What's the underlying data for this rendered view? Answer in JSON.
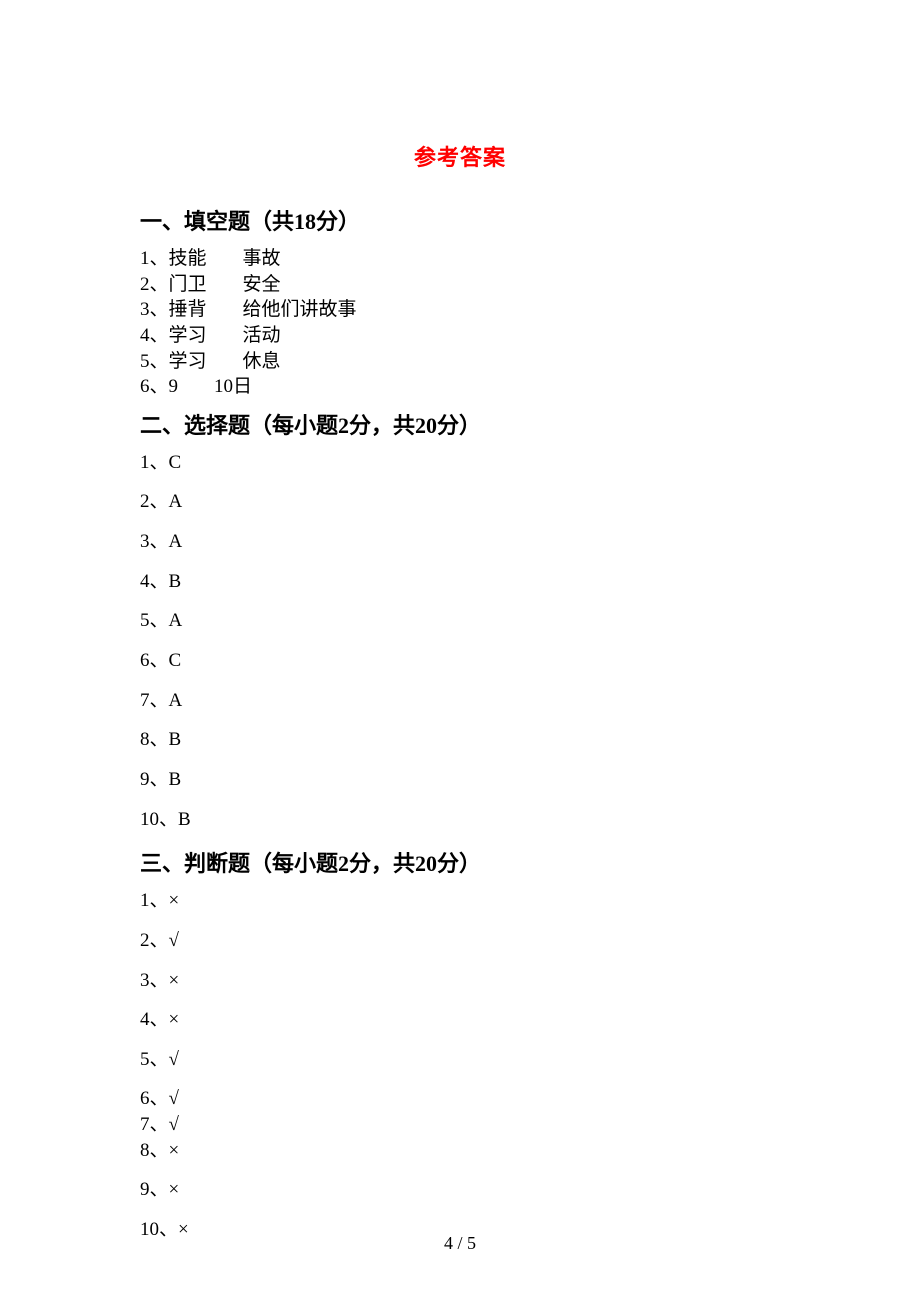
{
  "title": "参考答案",
  "sections": {
    "fill": {
      "header": "一、填空题（共18分）",
      "items": [
        {
          "n": "1",
          "a": "技能",
          "b": "事故"
        },
        {
          "n": "2",
          "a": "门卫",
          "b": "安全"
        },
        {
          "n": "3",
          "a": "捶背",
          "b": "给他们讲故事"
        },
        {
          "n": "4",
          "a": "学习",
          "b": "活动"
        },
        {
          "n": "5",
          "a": "学习",
          "b": "休息"
        },
        {
          "n": "6",
          "a": "9",
          "b": "10日"
        }
      ]
    },
    "choice": {
      "header": "二、选择题（每小题2分，共20分）",
      "items": [
        {
          "n": "1",
          "v": "C"
        },
        {
          "n": "2",
          "v": "A"
        },
        {
          "n": "3",
          "v": "A"
        },
        {
          "n": "4",
          "v": "B"
        },
        {
          "n": "5",
          "v": "A"
        },
        {
          "n": "6",
          "v": "C"
        },
        {
          "n": "7",
          "v": "A"
        },
        {
          "n": "8",
          "v": "B"
        },
        {
          "n": "9",
          "v": "B"
        },
        {
          "n": "10",
          "v": "B"
        }
      ]
    },
    "judge": {
      "header": "三、判断题（每小题2分，共20分）",
      "items": [
        {
          "n": "1",
          "v": "×",
          "tight": false
        },
        {
          "n": "2",
          "v": "√",
          "tight": false
        },
        {
          "n": "3",
          "v": "×",
          "tight": false
        },
        {
          "n": "4",
          "v": "×",
          "tight": false
        },
        {
          "n": "5",
          "v": "√",
          "tight": false
        },
        {
          "n": "6",
          "v": "√",
          "tight": true
        },
        {
          "n": "7",
          "v": "√",
          "tight": true
        },
        {
          "n": "8",
          "v": "×",
          "tight": false
        },
        {
          "n": "9",
          "v": "×",
          "tight": false
        },
        {
          "n": "10",
          "v": "×",
          "tight": false
        }
      ]
    }
  },
  "footer": "4 / 5",
  "colors": {
    "title": "#ff0000",
    "text": "#000000",
    "background": "#ffffff"
  }
}
